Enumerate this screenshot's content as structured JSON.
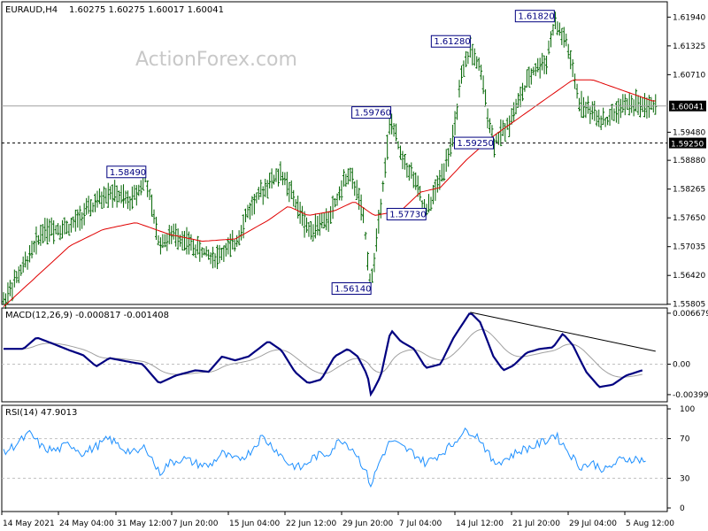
{
  "header": {
    "symbol": "EURAUD,H4",
    "ohlc": "1.60275 1.60275 1.60017 1.60041"
  },
  "watermark": "ActionForex.com",
  "colors": {
    "bar": "#006400",
    "ma": "#e00000",
    "macd": "#000080",
    "signal": "#a0a0a0",
    "rsi": "#1e90ff",
    "grid": "#c0c0c0",
    "label_border": "#000080"
  },
  "chart_data": [
    {
      "type": "ohlc",
      "title": "EURAUD,H4",
      "ylim": [
        1.558,
        1.6223
      ],
      "y_ticks": [
        "1.61940",
        "1.61325",
        "1.60710",
        "1.59480",
        "1.58880",
        "1.58265",
        "1.57650",
        "1.57035",
        "1.56420",
        "1.55805"
      ],
      "x_tick_labels": [
        "14 May 2021",
        "24 May 04:00",
        "31 May 12:00",
        "7 Jun 20:00",
        "15 Jun 04:00",
        "22 Jun 12:00",
        "29 Jun 20:00",
        "7 Jul 04:00",
        "14 Jul 12:00",
        "21 Jul 20:00",
        "29 Jul 04:00",
        "5 Aug 12:00"
      ],
      "current_price": "1.60041",
      "support_level": "1.59250",
      "annotations": [
        {
          "label": "1.58490",
          "x": 0.215,
          "y": 1.5849
        },
        {
          "label": "1.59760",
          "x": 0.585,
          "y": 1.5976
        },
        {
          "label": "1.61280",
          "x": 0.705,
          "y": 1.6128
        },
        {
          "label": "1.61820",
          "x": 0.832,
          "y": 1.6182
        },
        {
          "label": "1.59250",
          "x": 0.74,
          "y": 1.5925
        },
        {
          "label": "1.57730",
          "x": 0.638,
          "y": 1.5773
        },
        {
          "label": "1.56140",
          "x": 0.555,
          "y": 1.5614
        }
      ],
      "anchors": [
        [
          0,
          1.5588
        ],
        [
          0.03,
          1.566
        ],
        [
          0.06,
          1.574
        ],
        [
          0.1,
          1.5745
        ],
        [
          0.13,
          1.5785
        ],
        [
          0.16,
          1.582
        ],
        [
          0.19,
          1.58
        ],
        [
          0.215,
          1.5849
        ],
        [
          0.235,
          1.571
        ],
        [
          0.26,
          1.573
        ],
        [
          0.29,
          1.57
        ],
        [
          0.32,
          1.568
        ],
        [
          0.35,
          1.571
        ],
        [
          0.37,
          1.578
        ],
        [
          0.4,
          1.584
        ],
        [
          0.42,
          1.586
        ],
        [
          0.44,
          1.58
        ],
        [
          0.46,
          1.574
        ],
        [
          0.49,
          1.576
        ],
        [
          0.52,
          1.586
        ],
        [
          0.535,
          1.582
        ],
        [
          0.545,
          1.575
        ],
        [
          0.555,
          1.5614
        ],
        [
          0.57,
          1.58
        ],
        [
          0.585,
          1.5976
        ],
        [
          0.6,
          1.59
        ],
        [
          0.62,
          1.585
        ],
        [
          0.638,
          1.5773
        ],
        [
          0.66,
          1.585
        ],
        [
          0.68,
          1.594
        ],
        [
          0.69,
          1.605
        ],
        [
          0.705,
          1.6128
        ],
        [
          0.72,
          1.608
        ],
        [
          0.74,
          1.5925
        ],
        [
          0.76,
          1.596
        ],
        [
          0.78,
          1.602
        ],
        [
          0.8,
          1.608
        ],
        [
          0.82,
          1.61
        ],
        [
          0.832,
          1.6182
        ],
        [
          0.85,
          1.614
        ],
        [
          0.87,
          1.601
        ],
        [
          0.89,
          1.599
        ],
        [
          0.91,
          1.597
        ],
        [
          0.93,
          1.6
        ],
        [
          0.95,
          1.601
        ],
        [
          0.98,
          1.6004
        ]
      ],
      "ma_anchors": [
        [
          0,
          1.5575
        ],
        [
          0.05,
          1.564
        ],
        [
          0.1,
          1.5705
        ],
        [
          0.15,
          1.574
        ],
        [
          0.2,
          1.5755
        ],
        [
          0.25,
          1.573
        ],
        [
          0.3,
          1.5715
        ],
        [
          0.35,
          1.572
        ],
        [
          0.4,
          1.576
        ],
        [
          0.43,
          1.579
        ],
        [
          0.46,
          1.577
        ],
        [
          0.5,
          1.578
        ],
        [
          0.53,
          1.58
        ],
        [
          0.56,
          1.577
        ],
        [
          0.6,
          1.578
        ],
        [
          0.63,
          1.582
        ],
        [
          0.66,
          1.583
        ],
        [
          0.7,
          1.589
        ],
        [
          0.74,
          1.594
        ],
        [
          0.78,
          1.598
        ],
        [
          0.82,
          1.602
        ],
        [
          0.86,
          1.606
        ],
        [
          0.89,
          1.606
        ],
        [
          0.93,
          1.604
        ],
        [
          0.98,
          1.6015
        ]
      ]
    },
    {
      "type": "line",
      "title": "MACD(12,26,9) -0.000817 -0.001408",
      "ylim": [
        -0.0047,
        0.0069
      ],
      "y_ticks": [
        "0.006679",
        "0.00",
        "-0.003994"
      ],
      "zero_label": "0.00",
      "macd_anchors": [
        [
          0,
          0.002
        ],
        [
          0.03,
          0.002
        ],
        [
          0.05,
          0.0035
        ],
        [
          0.08,
          0.0025
        ],
        [
          0.1,
          0.0018
        ],
        [
          0.12,
          0.0012
        ],
        [
          0.14,
          -0.0003
        ],
        [
          0.16,
          0.0008
        ],
        [
          0.19,
          0.0003
        ],
        [
          0.21,
          0.0
        ],
        [
          0.235,
          -0.0025
        ],
        [
          0.26,
          -0.0015
        ],
        [
          0.29,
          -0.0008
        ],
        [
          0.31,
          -0.001
        ],
        [
          0.33,
          0.001
        ],
        [
          0.35,
          0.0005
        ],
        [
          0.37,
          0.001
        ],
        [
          0.4,
          0.003
        ],
        [
          0.42,
          0.0018
        ],
        [
          0.44,
          -0.001
        ],
        [
          0.46,
          -0.0025
        ],
        [
          0.48,
          -0.002
        ],
        [
          0.5,
          0.001
        ],
        [
          0.52,
          0.002
        ],
        [
          0.535,
          0.001
        ],
        [
          0.55,
          -0.0015
        ],
        [
          0.555,
          -0.004
        ],
        [
          0.57,
          -0.0015
        ],
        [
          0.585,
          0.0045
        ],
        [
          0.6,
          0.003
        ],
        [
          0.62,
          0.002
        ],
        [
          0.638,
          -0.0005
        ],
        [
          0.66,
          0.0
        ],
        [
          0.68,
          0.0035
        ],
        [
          0.705,
          0.0068
        ],
        [
          0.72,
          0.0055
        ],
        [
          0.74,
          0.001
        ],
        [
          0.755,
          -0.0008
        ],
        [
          0.77,
          -0.0002
        ],
        [
          0.79,
          0.0015
        ],
        [
          0.81,
          0.002
        ],
        [
          0.83,
          0.0022
        ],
        [
          0.845,
          0.004
        ],
        [
          0.86,
          0.0025
        ],
        [
          0.88,
          -0.001
        ],
        [
          0.9,
          -0.003
        ],
        [
          0.92,
          -0.0027
        ],
        [
          0.94,
          -0.0015
        ],
        [
          0.965,
          -0.0008
        ]
      ],
      "trendline": [
        [
          0.705,
          0.0068
        ],
        [
          0.985,
          0.0017
        ]
      ]
    },
    {
      "type": "line",
      "title": "RSI(14) 47.9013",
      "ylim": [
        0,
        100
      ],
      "y_ticks": [
        "100",
        "70",
        "30",
        "0"
      ],
      "rsi_anchors": [
        [
          0,
          55
        ],
        [
          0.02,
          65
        ],
        [
          0.04,
          75
        ],
        [
          0.06,
          60
        ],
        [
          0.08,
          58
        ],
        [
          0.1,
          65
        ],
        [
          0.12,
          55
        ],
        [
          0.14,
          62
        ],
        [
          0.16,
          70
        ],
        [
          0.18,
          60
        ],
        [
          0.2,
          55
        ],
        [
          0.215,
          62
        ],
        [
          0.235,
          35
        ],
        [
          0.25,
          45
        ],
        [
          0.27,
          50
        ],
        [
          0.29,
          45
        ],
        [
          0.31,
          42
        ],
        [
          0.33,
          55
        ],
        [
          0.35,
          48
        ],
        [
          0.37,
          55
        ],
        [
          0.39,
          72
        ],
        [
          0.41,
          60
        ],
        [
          0.43,
          45
        ],
        [
          0.45,
          40
        ],
        [
          0.47,
          52
        ],
        [
          0.49,
          55
        ],
        [
          0.51,
          70
        ],
        [
          0.53,
          58
        ],
        [
          0.545,
          40
        ],
        [
          0.555,
          23
        ],
        [
          0.57,
          50
        ],
        [
          0.585,
          68
        ],
        [
          0.6,
          62
        ],
        [
          0.62,
          55
        ],
        [
          0.638,
          45
        ],
        [
          0.66,
          55
        ],
        [
          0.68,
          65
        ],
        [
          0.69,
          75
        ],
        [
          0.705,
          78
        ],
        [
          0.72,
          70
        ],
        [
          0.74,
          45
        ],
        [
          0.76,
          50
        ],
        [
          0.78,
          58
        ],
        [
          0.8,
          62
        ],
        [
          0.82,
          68
        ],
        [
          0.832,
          75
        ],
        [
          0.85,
          60
        ],
        [
          0.87,
          42
        ],
        [
          0.89,
          45
        ],
        [
          0.91,
          38
        ],
        [
          0.93,
          48
        ],
        [
          0.95,
          50
        ],
        [
          0.97,
          48
        ]
      ]
    }
  ]
}
